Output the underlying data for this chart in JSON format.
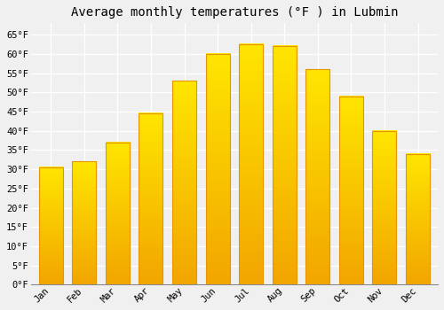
{
  "title": "Average monthly temperatures (°F ) in Lubmin",
  "months": [
    "Jan",
    "Feb",
    "Mar",
    "Apr",
    "May",
    "Jun",
    "Jul",
    "Aug",
    "Sep",
    "Oct",
    "Nov",
    "Dec"
  ],
  "values": [
    30.5,
    32.0,
    37.0,
    44.5,
    53.0,
    60.0,
    62.5,
    62.0,
    56.0,
    49.0,
    40.0,
    34.0
  ],
  "bar_color_face": "#FFBB33",
  "bar_color_edge": "#E89400",
  "ylim": [
    0,
    68
  ],
  "yticks": [
    0,
    5,
    10,
    15,
    20,
    25,
    30,
    35,
    40,
    45,
    50,
    55,
    60,
    65
  ],
  "background_color": "#f0f0f0",
  "grid_color": "#ffffff",
  "title_fontsize": 10,
  "tick_fontsize": 7.5,
  "font_family": "monospace"
}
